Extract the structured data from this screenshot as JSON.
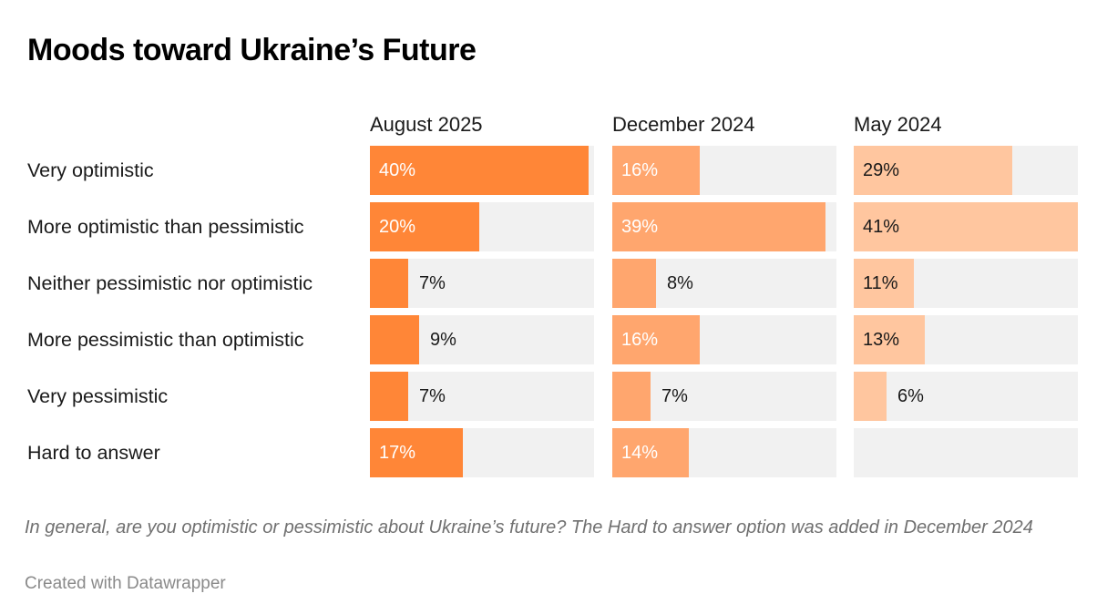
{
  "title": "Moods toward Ukraine’s Future",
  "note": "In general, are you optimistic or pessimistic about Ukraine’s future? The Hard to answer option was added in December 2024",
  "credit": "Created with Datawrapper",
  "colors": {
    "background_cell": "#f1f1f1",
    "series": [
      "#ff8637",
      "#ffa66e",
      "#ffc69f"
    ]
  },
  "chart_data": {
    "type": "bar",
    "orientation": "horizontal",
    "layout": "small-multiples",
    "title": "Moods toward Ukraine’s Future",
    "xlim": [
      0,
      41
    ],
    "categories": [
      "Very optimistic",
      "More optimistic than pessimistic",
      "Neither pessimistic nor optimistic",
      "More pessimistic than optimistic",
      "Very pessimistic",
      "Hard to answer"
    ],
    "series": [
      {
        "name": "August 2025",
        "values": [
          40,
          20,
          7,
          9,
          7,
          17
        ]
      },
      {
        "name": "December 2024",
        "values": [
          16,
          39,
          8,
          16,
          7,
          14
        ]
      },
      {
        "name": "May 2024",
        "values": [
          29,
          41,
          11,
          13,
          6,
          null
        ]
      }
    ],
    "value_suffix": "%"
  }
}
